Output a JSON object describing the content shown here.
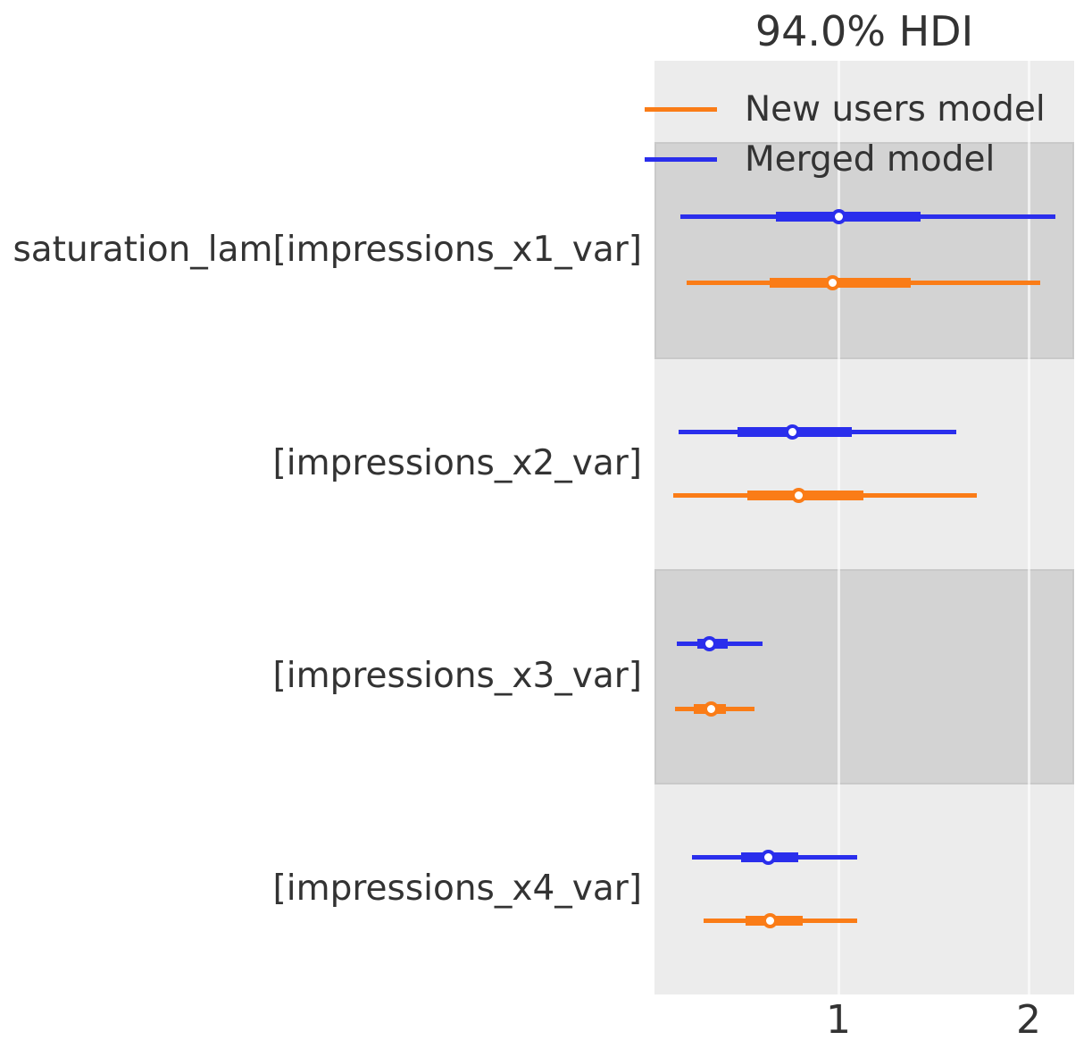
{
  "title": "94.0% HDI",
  "legend": {
    "items": [
      {
        "label": "New users model",
        "color": "#fa7c17"
      },
      {
        "label": "Merged model",
        "color": "#2a2eec"
      }
    ]
  },
  "colors": {
    "plot_background": "#ececec",
    "shaded_band": "#d3d3d3",
    "gridline": "#ffffff",
    "text": "#333333"
  },
  "chart_data": {
    "type": "forest",
    "title": "94.0% HDI",
    "hdi_probability": 0.94,
    "xlabel": "",
    "x_ticks": [
      1,
      2
    ],
    "xlim": [
      0.03,
      2.24
    ],
    "grid": "vertical gridlines at x ticks",
    "legend_position": "upper right, inside plot",
    "series_colors": {
      "Merged model": "#2a2eec",
      "New users model": "#fa7c17"
    },
    "rows": [
      {
        "label": "saturation_lam[impressions_x1_var]",
        "shaded": true,
        "intervals": [
          {
            "model": "Merged model",
            "hdi_94": [
              0.17,
              2.14
            ],
            "thick_band": [
              0.67,
              1.43
            ],
            "point": 1.0
          },
          {
            "model": "New users model",
            "hdi_94": [
              0.2,
              2.06
            ],
            "thick_band": [
              0.64,
              1.38
            ],
            "point": 0.97
          }
        ]
      },
      {
        "label": "[impressions_x2_var]",
        "shaded": false,
        "intervals": [
          {
            "model": "Merged model",
            "hdi_94": [
              0.16,
              1.62
            ],
            "thick_band": [
              0.47,
              1.07
            ],
            "point": 0.76
          },
          {
            "model": "New users model",
            "hdi_94": [
              0.13,
              1.73
            ],
            "thick_band": [
              0.52,
              1.13
            ],
            "point": 0.79
          }
        ]
      },
      {
        "label": "[impressions_x3_var]",
        "shaded": true,
        "intervals": [
          {
            "model": "Merged model",
            "hdi_94": [
              0.15,
              0.6
            ],
            "thick_band": [
              0.26,
              0.42
            ],
            "point": 0.32
          },
          {
            "model": "New users model",
            "hdi_94": [
              0.14,
              0.56
            ],
            "thick_band": [
              0.24,
              0.41
            ],
            "point": 0.33
          }
        ]
      },
      {
        "label": "[impressions_x4_var]",
        "shaded": false,
        "intervals": [
          {
            "model": "Merged model",
            "hdi_94": [
              0.23,
              1.1
            ],
            "thick_band": [
              0.49,
              0.79
            ],
            "point": 0.63
          },
          {
            "model": "New users model",
            "hdi_94": [
              0.29,
              1.1
            ],
            "thick_band": [
              0.51,
              0.81
            ],
            "point": 0.64
          }
        ]
      }
    ]
  }
}
